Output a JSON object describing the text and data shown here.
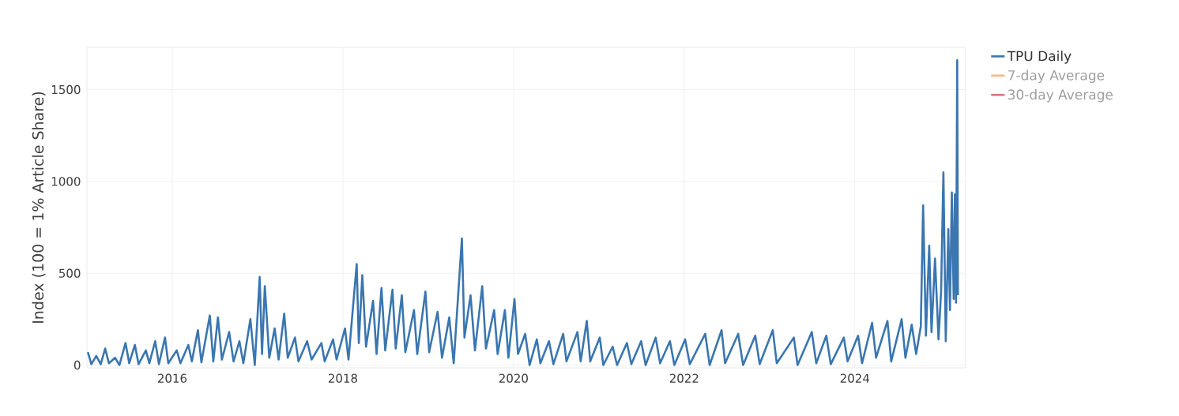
{
  "chart_data": {
    "type": "line",
    "ylabel": "Index (100 = 1% Article Share)",
    "x": [
      "2015-01-05",
      "2015-01-20",
      "2015-02-10",
      "2015-03-01",
      "2015-03-20",
      "2015-04-05",
      "2015-05-01",
      "2015-05-20",
      "2015-06-15",
      "2015-07-01",
      "2015-07-25",
      "2015-08-10",
      "2015-09-10",
      "2015-09-25",
      "2015-10-20",
      "2015-11-05",
      "2015-12-01",
      "2015-12-15",
      "2016-01-20",
      "2016-02-05",
      "2016-03-10",
      "2016-03-25",
      "2016-04-20",
      "2016-05-05",
      "2016-06-10",
      "2016-06-25",
      "2016-07-15",
      "2016-08-01",
      "2016-09-01",
      "2016-09-20",
      "2016-10-15",
      "2016-11-01",
      "2016-12-01",
      "2016-12-20",
      "2017-01-10",
      "2017-01-20",
      "2017-02-01",
      "2017-02-20",
      "2017-03-15",
      "2017-04-01",
      "2017-04-25",
      "2017-05-10",
      "2017-06-10",
      "2017-06-25",
      "2017-08-01",
      "2017-08-20",
      "2017-10-01",
      "2017-10-15",
      "2017-11-20",
      "2017-12-05",
      "2018-01-10",
      "2018-01-25",
      "2018-03-01",
      "2018-03-10",
      "2018-03-25",
      "2018-04-10",
      "2018-05-10",
      "2018-05-25",
      "2018-06-15",
      "2018-07-01",
      "2018-08-01",
      "2018-08-15",
      "2018-09-10",
      "2018-09-25",
      "2018-11-01",
      "2018-11-15",
      "2018-12-20",
      "2019-01-05",
      "2019-02-10",
      "2019-03-01",
      "2019-04-01",
      "2019-04-20",
      "2019-05-25",
      "2019-06-05",
      "2019-07-01",
      "2019-07-20",
      "2019-08-20",
      "2019-09-05",
      "2019-10-10",
      "2019-10-25",
      "2019-11-25",
      "2019-12-10",
      "2020-01-05",
      "2020-01-20",
      "2020-02-20",
      "2020-03-10",
      "2020-04-10",
      "2020-04-25",
      "2020-06-01",
      "2020-06-20",
      "2020-08-01",
      "2020-08-15",
      "2020-10-01",
      "2020-10-15",
      "2020-11-10",
      "2020-11-25",
      "2021-01-05",
      "2021-01-20",
      "2021-03-01",
      "2021-03-20",
      "2021-05-01",
      "2021-05-20",
      "2021-07-01",
      "2021-07-20",
      "2021-09-01",
      "2021-09-20",
      "2021-11-01",
      "2021-11-20",
      "2022-01-05",
      "2022-01-25",
      "2022-04-01",
      "2022-04-20",
      "2022-06-10",
      "2022-06-25",
      "2022-08-20",
      "2022-09-10",
      "2022-11-01",
      "2022-11-20",
      "2023-01-15",
      "2023-02-01",
      "2023-04-15",
      "2023-05-01",
      "2023-07-01",
      "2023-07-20",
      "2023-09-01",
      "2023-09-20",
      "2023-11-15",
      "2023-12-01",
      "2024-01-15",
      "2024-02-01",
      "2024-03-15",
      "2024-04-01",
      "2024-05-20",
      "2024-06-05",
      "2024-07-20",
      "2024-08-05",
      "2024-09-01",
      "2024-09-20",
      "2024-10-10",
      "2024-10-20",
      "2024-11-01",
      "2024-11-15",
      "2024-11-25",
      "2024-12-10",
      "2024-12-25",
      "2025-01-05",
      "2025-01-15",
      "2025-01-25",
      "2025-02-05",
      "2025-02-12",
      "2025-02-20",
      "2025-02-28",
      "2025-03-05",
      "2025-03-10",
      "2025-03-15",
      "2025-03-18"
    ],
    "series": [
      {
        "name": "TPU Daily",
        "color": "#3a76b0",
        "values": [
          70,
          5,
          50,
          5,
          90,
          10,
          40,
          0,
          120,
          10,
          110,
          5,
          80,
          10,
          130,
          5,
          150,
          10,
          80,
          10,
          110,
          20,
          190,
          15,
          270,
          20,
          260,
          30,
          180,
          20,
          130,
          10,
          250,
          0,
          480,
          60,
          430,
          40,
          200,
          30,
          280,
          40,
          150,
          20,
          130,
          30,
          120,
          20,
          140,
          30,
          200,
          30,
          550,
          120,
          490,
          100,
          350,
          60,
          420,
          80,
          410,
          90,
          380,
          70,
          300,
          60,
          400,
          70,
          290,
          40,
          260,
          10,
          690,
          150,
          380,
          80,
          430,
          90,
          300,
          60,
          300,
          40,
          360,
          60,
          170,
          0,
          140,
          10,
          130,
          5,
          170,
          20,
          180,
          20,
          240,
          20,
          150,
          0,
          100,
          0,
          120,
          5,
          130,
          0,
          150,
          10,
          130,
          0,
          140,
          5,
          170,
          0,
          190,
          10,
          170,
          0,
          160,
          5,
          190,
          10,
          150,
          0,
          180,
          10,
          160,
          5,
          150,
          20,
          160,
          10,
          230,
          40,
          240,
          20,
          250,
          40,
          220,
          60,
          210,
          870,
          160,
          650,
          180,
          580,
          140,
          400,
          1050,
          130,
          740,
          300,
          940,
          360,
          930,
          340,
          1660,
          380
        ]
      },
      {
        "name": "7-day Average",
        "color": "#f5b880",
        "values": [
          null,
          null,
          null,
          null,
          null,
          null,
          null,
          null,
          null,
          null,
          null,
          null,
          null,
          null,
          null,
          null,
          null,
          null,
          null,
          null,
          null,
          null,
          null,
          null,
          null,
          null,
          null,
          null,
          null,
          null,
          null,
          null,
          null,
          null,
          null,
          null,
          null,
          null,
          null,
          null,
          null,
          null,
          null,
          null,
          null,
          null,
          null,
          null,
          null,
          null,
          null,
          null,
          null,
          null,
          null,
          null,
          null,
          null,
          null,
          null,
          null,
          null,
          null,
          null,
          null,
          null,
          null,
          null,
          null,
          null,
          null,
          null,
          null,
          null,
          null,
          null,
          null,
          null,
          null,
          null,
          null,
          null,
          null,
          null,
          null,
          null,
          null,
          null,
          null,
          null,
          null,
          null,
          null,
          null,
          null,
          null,
          null,
          null,
          null,
          null,
          null,
          null,
          null,
          null,
          null,
          null,
          null,
          null,
          null,
          null,
          null,
          null,
          null,
          null,
          null,
          null,
          null,
          null,
          null,
          null,
          null,
          null,
          null,
          null,
          null,
          null,
          null,
          null,
          null,
          null,
          null,
          null,
          null,
          null,
          null,
          null,
          null,
          null,
          null,
          null,
          null,
          null,
          null,
          null,
          null,
          null,
          null,
          null,
          null,
          null,
          null,
          null,
          null,
          null,
          null,
          null
        ]
      },
      {
        "name": "30-day Average",
        "color": "#d9767b",
        "values": [
          null,
          null,
          null,
          null,
          null,
          null,
          null,
          null,
          null,
          null,
          null,
          null,
          null,
          null,
          null,
          null,
          null,
          null,
          null,
          null,
          null,
          null,
          null,
          null,
          null,
          null,
          null,
          null,
          null,
          null,
          null,
          null,
          null,
          null,
          null,
          null,
          null,
          null,
          null,
          null,
          null,
          null,
          null,
          null,
          null,
          null,
          null,
          null,
          null,
          null,
          null,
          null,
          null,
          null,
          null,
          null,
          null,
          null,
          null,
          null,
          null,
          null,
          null,
          null,
          null,
          null,
          null,
          null,
          null,
          null,
          null,
          null,
          null,
          null,
          null,
          null,
          null,
          null,
          null,
          null,
          null,
          null,
          null,
          null,
          null,
          null,
          null,
          null,
          null,
          null,
          null,
          null,
          null,
          null,
          null,
          null,
          null,
          null,
          null,
          null,
          null,
          null,
          null,
          null,
          null,
          null,
          null,
          null,
          null,
          null,
          null,
          null,
          null,
          null,
          null,
          null,
          null,
          null,
          null,
          null,
          null,
          null,
          null,
          null,
          null,
          null,
          null,
          null,
          null,
          null,
          null,
          null,
          null,
          null,
          null,
          null,
          null,
          null,
          null,
          null,
          null,
          null,
          null,
          null,
          null,
          null,
          null,
          null,
          null,
          null,
          null,
          null,
          null,
          null,
          null,
          null
        ]
      }
    ],
    "xlim": [
      "2015-01-01",
      "2025-04-20"
    ],
    "xticks": [
      {
        "value": "2016-01-01",
        "label": "2016"
      },
      {
        "value": "2018-01-01",
        "label": "2018"
      },
      {
        "value": "2020-01-01",
        "label": "2020"
      },
      {
        "value": "2022-01-01",
        "label": "2022"
      },
      {
        "value": "2024-01-01",
        "label": "2024"
      }
    ],
    "ylim": [
      -15,
      1730
    ],
    "yticks": [
      0,
      500,
      1000,
      1500
    ],
    "grid": true,
    "legend": "top right"
  }
}
